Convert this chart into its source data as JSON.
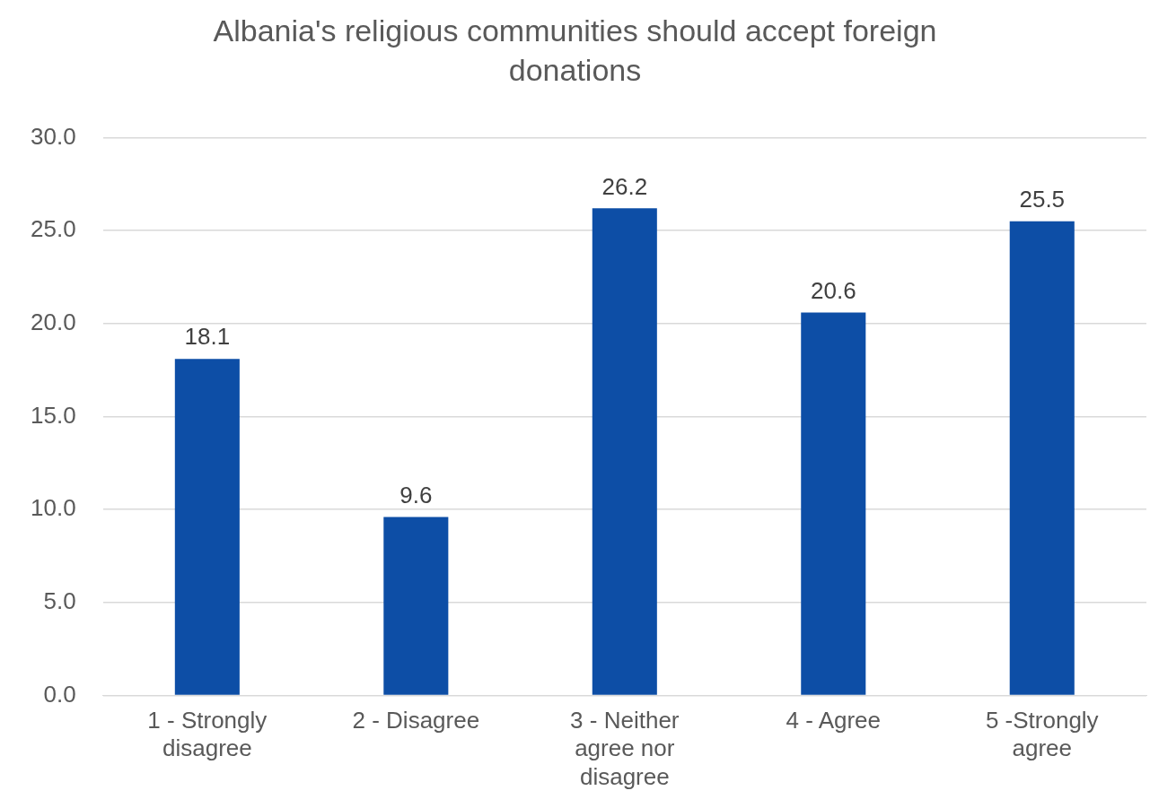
{
  "chart_data": {
    "type": "bar",
    "title": "Albania's religious communities should accept foreign donations",
    "categories": [
      "1 - Strongly disagree",
      "2 - Disagree",
      "3 - Neither agree nor disagree",
      "4 - Agree",
      "5 -Strongly agree"
    ],
    "values": [
      18.1,
      9.6,
      26.2,
      20.6,
      25.5
    ],
    "color": "#0d4ea6",
    "ylim": [
      0,
      30
    ],
    "yticks": [
      {
        "value": 0,
        "label": "0.0"
      },
      {
        "value": 5,
        "label": "5.0"
      },
      {
        "value": 10,
        "label": "10.0"
      },
      {
        "value": 15,
        "label": "15.0"
      },
      {
        "value": 20,
        "label": "20.0"
      },
      {
        "value": 25,
        "label": "25.0"
      },
      {
        "value": 30,
        "label": "30.0"
      }
    ],
    "grid": "y",
    "data_labels": true
  }
}
